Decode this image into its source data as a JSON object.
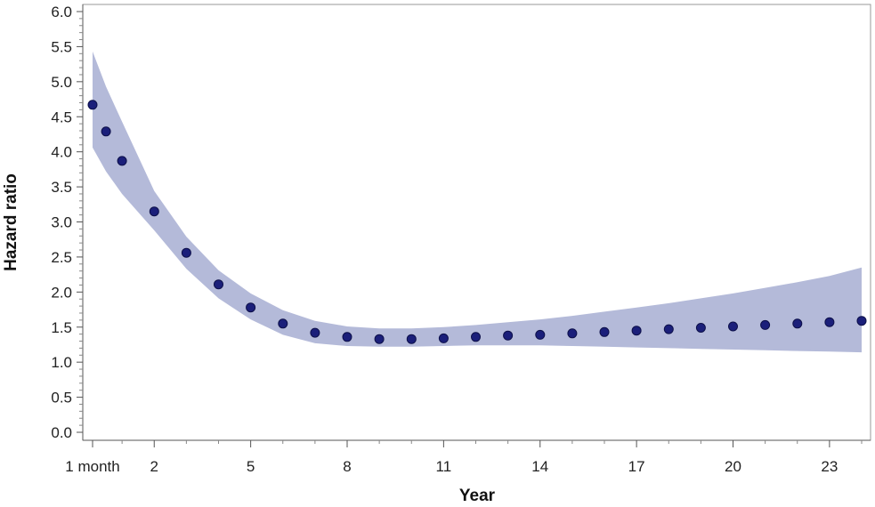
{
  "chart_data": {
    "type": "scatter",
    "title": "",
    "xlabel": "Year",
    "ylabel": "Hazard ratio",
    "xlim": [
      0.083,
      24
    ],
    "ylim": [
      0,
      6
    ],
    "y_ticks": [
      "0.0",
      "0.5",
      "1.0",
      "1.5",
      "2.0",
      "2.5",
      "3.0",
      "3.5",
      "4.0",
      "4.5",
      "5.0",
      "5.5",
      "6.0"
    ],
    "x_ticks": [
      {
        "value": 0.083,
        "label": "1 month"
      },
      {
        "value": 2,
        "label": "2"
      },
      {
        "value": 5,
        "label": "5"
      },
      {
        "value": 8,
        "label": "8"
      },
      {
        "value": 11,
        "label": "11"
      },
      {
        "value": 14,
        "label": "14"
      },
      {
        "value": 17,
        "label": "17"
      },
      {
        "value": 20,
        "label": "20"
      },
      {
        "value": 23,
        "label": "23"
      }
    ],
    "grid": false,
    "point_color": "#1b1f7a",
    "band_color": "#b4bad9",
    "points": [
      {
        "x": 0.083,
        "y": 4.67
      },
      {
        "x": 0.5,
        "y": 4.29
      },
      {
        "x": 1,
        "y": 3.87
      },
      {
        "x": 2,
        "y": 3.15
      },
      {
        "x": 3,
        "y": 2.56
      },
      {
        "x": 4,
        "y": 2.11
      },
      {
        "x": 5,
        "y": 1.78
      },
      {
        "x": 6,
        "y": 1.55
      },
      {
        "x": 7,
        "y": 1.42
      },
      {
        "x": 8,
        "y": 1.36
      },
      {
        "x": 9,
        "y": 1.33
      },
      {
        "x": 10,
        "y": 1.33
      },
      {
        "x": 11,
        "y": 1.34
      },
      {
        "x": 12,
        "y": 1.36
      },
      {
        "x": 13,
        "y": 1.38
      },
      {
        "x": 14,
        "y": 1.39
      },
      {
        "x": 15,
        "y": 1.41
      },
      {
        "x": 16,
        "y": 1.43
      },
      {
        "x": 17,
        "y": 1.45
      },
      {
        "x": 18,
        "y": 1.47
      },
      {
        "x": 19,
        "y": 1.49
      },
      {
        "x": 20,
        "y": 1.51
      },
      {
        "x": 21,
        "y": 1.53
      },
      {
        "x": 22,
        "y": 1.55
      },
      {
        "x": 23,
        "y": 1.57
      },
      {
        "x": 24,
        "y": 1.59
      }
    ],
    "confidence_band": {
      "x": [
        0.083,
        0.5,
        1,
        2,
        3,
        4,
        5,
        6,
        7,
        8,
        9,
        10,
        11,
        12,
        13,
        14,
        15,
        16,
        17,
        18,
        19,
        20,
        21,
        22,
        23,
        24
      ],
      "lower": [
        4.06,
        3.72,
        3.4,
        2.88,
        2.33,
        1.91,
        1.61,
        1.39,
        1.27,
        1.23,
        1.22,
        1.22,
        1.23,
        1.24,
        1.24,
        1.24,
        1.23,
        1.22,
        1.21,
        1.2,
        1.19,
        1.18,
        1.17,
        1.16,
        1.15,
        1.14
      ],
      "upper": [
        5.43,
        4.93,
        4.43,
        3.44,
        2.79,
        2.31,
        1.98,
        1.74,
        1.59,
        1.51,
        1.48,
        1.48,
        1.5,
        1.53,
        1.57,
        1.61,
        1.66,
        1.72,
        1.78,
        1.84,
        1.91,
        1.98,
        2.06,
        2.14,
        2.23,
        2.35
      ]
    }
  }
}
